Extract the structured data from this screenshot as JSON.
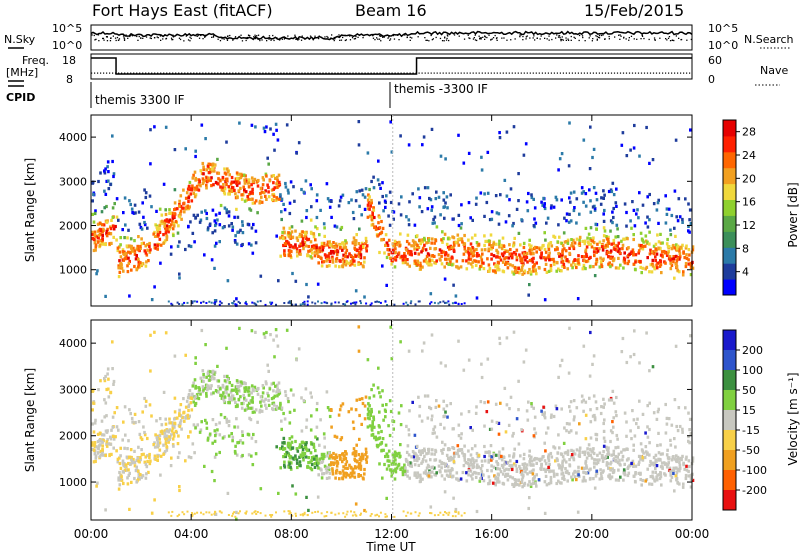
{
  "header": {
    "title": "Fort Hays East (fitACF)",
    "beam": "Beam 16",
    "date": "15/Feb/2015"
  },
  "top_panel": {
    "left_label": "N.Sky",
    "right_label": "N.Search",
    "left_ticks": [
      "10^5",
      "10^0"
    ],
    "right_ticks": [
      "10^5",
      "10^0"
    ]
  },
  "freq_panel": {
    "left_label_1": "Freq.",
    "left_label_2": "[MHz]",
    "right_label": "Nave",
    "left_ticks": [
      "18",
      "8"
    ],
    "right_ticks": [
      "60",
      "0"
    ]
  },
  "cpid": {
    "label": "CPID",
    "mode_1": "themis 3300 IF",
    "mode_2": "themis -3300 IF"
  },
  "chart_data": [
    {
      "type": "heatmap",
      "title": "",
      "ylabel": "Slant Range [km]",
      "ylim": [
        180,
        4500
      ],
      "yticks": [
        1000,
        2000,
        3000,
        4000
      ],
      "xlim": [
        0,
        24
      ],
      "xticks": [
        "00:00",
        "04:00",
        "08:00",
        "12:00",
        "16:00",
        "20:00",
        "00:00"
      ],
      "colorbar": {
        "label": "Power [dB]",
        "ticks": [
          4,
          8,
          12,
          16,
          20,
          24,
          28
        ],
        "range": [
          0,
          30
        ],
        "colors": [
          "#0000ff",
          "#1e3c9c",
          "#2b7aa8",
          "#3c8f5a",
          "#5aa845",
          "#8fd02e",
          "#f0d83c",
          "#f2a020",
          "#ff6600",
          "#ff2000",
          "#e60000"
        ]
      }
    },
    {
      "type": "heatmap",
      "title": "",
      "xlabel": "Time UT",
      "ylabel": "Slant Range [km]",
      "ylim": [
        180,
        4500
      ],
      "yticks": [
        1000,
        2000,
        3000,
        4000
      ],
      "xlim": [
        0,
        24
      ],
      "xticks": [
        "00:00",
        "04:00",
        "08:00",
        "12:00",
        "16:00",
        "20:00",
        "00:00"
      ],
      "colorbar": {
        "label": "Velocity [m s⁻¹]",
        "ticks": [
          200,
          100,
          50,
          15,
          -15,
          -50,
          -100,
          -200
        ],
        "colors": [
          "#1a1acc",
          "#2e55cc",
          "#3c9040",
          "#80d040",
          "#c8c8c0",
          "#f8d048",
          "#f0a020",
          "#ff6000",
          "#e81010"
        ]
      }
    }
  ]
}
